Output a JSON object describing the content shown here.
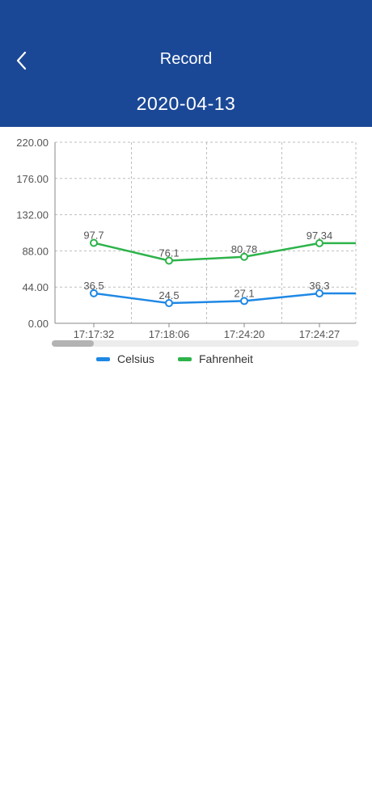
{
  "header": {
    "back_icon": "chevron-left-icon",
    "title": "Record",
    "date": "2020-04-13",
    "background": "#1b4896"
  },
  "chart_data": {
    "type": "line",
    "categories": [
      "17:17:32",
      "17:18:06",
      "17:24:20",
      "17:24:27"
    ],
    "ylim": [
      0,
      220
    ],
    "yticks": [
      "0.00",
      "44.00",
      "88.00",
      "132.00",
      "176.00",
      "220.00"
    ],
    "grid": true,
    "legend_placement": "bottom",
    "series": [
      {
        "name": "Celsius",
        "color": "#1e88e5",
        "values": [
          36.5,
          24.5,
          27.1,
          36.3
        ],
        "labels": [
          "36.5",
          "24.5",
          "27.1",
          "36.3"
        ]
      },
      {
        "name": "Fahrenheit",
        "color": "#2db34a",
        "values": [
          97.7,
          76.1,
          80.78,
          97.34
        ],
        "labels": [
          "97.7",
          "76.1",
          "80.78",
          "97.34"
        ]
      }
    ],
    "scroll_position": 0
  }
}
